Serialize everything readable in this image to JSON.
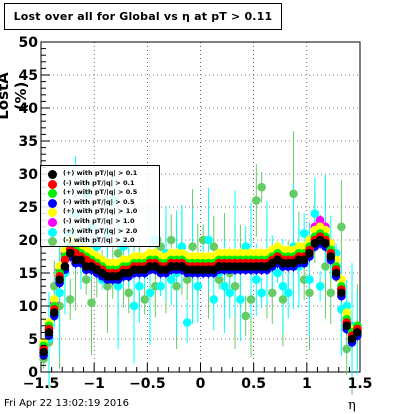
{
  "chart_data": {
    "type": "scatter",
    "title": "Lost over all for Global vs   η at pT > 0.11",
    "xlabel": "η",
    "ylabel": "LostA (%)",
    "xlim": [
      -1.5,
      1.5
    ],
    "ylim": [
      0,
      50
    ],
    "x_ticks": [
      "−1.5",
      "−1",
      "−0.5",
      "0",
      "0.5",
      "1",
      "1.5"
    ],
    "y_ticks": [
      "0",
      "5",
      "10",
      "15",
      "20",
      "25",
      "30",
      "35",
      "40",
      "45",
      "50"
    ],
    "grid": true,
    "legend_position": "left-middle",
    "timestamp": "Fri Apr 22 13:02:19 2016",
    "x": [
      -1.475,
      -1.425,
      -1.375,
      -1.325,
      -1.275,
      -1.225,
      -1.175,
      -1.125,
      -1.075,
      -1.025,
      -0.975,
      -0.925,
      -0.875,
      -0.825,
      -0.775,
      -0.725,
      -0.675,
      -0.625,
      -0.575,
      -0.525,
      -0.475,
      -0.425,
      -0.375,
      -0.325,
      -0.275,
      -0.225,
      -0.175,
      -0.125,
      -0.075,
      -0.025,
      0.025,
      0.075,
      0.125,
      0.175,
      0.225,
      0.275,
      0.325,
      0.375,
      0.425,
      0.475,
      0.525,
      0.575,
      0.625,
      0.675,
      0.725,
      0.775,
      0.825,
      0.875,
      0.925,
      0.975,
      1.025,
      1.075,
      1.125,
      1.175,
      1.225,
      1.275,
      1.325,
      1.375,
      1.425,
      1.475
    ],
    "series": [
      {
        "name": "(+) with pT/|q| > 0.1",
        "color": "#000000",
        "values": [
          3,
          6,
          9,
          14,
          16,
          18,
          17,
          17,
          16,
          16,
          15.5,
          15,
          14.5,
          14.5,
          14.5,
          15,
          15,
          15.5,
          15.5,
          15.5,
          16,
          16,
          15.5,
          15.5,
          16,
          16,
          16,
          15.5,
          15.5,
          15.5,
          15.5,
          15.5,
          15.5,
          16,
          16,
          16,
          16,
          16,
          16,
          16,
          16,
          16,
          16,
          16.5,
          17,
          16.5,
          16.5,
          16.5,
          17,
          17,
          18,
          19.5,
          20,
          19.5,
          17.5,
          15,
          12,
          7,
          5,
          6
        ]
      },
      {
        "name": "(-) with pT/|q| > 0.1",
        "color": "#ff0000",
        "values": [
          3.5,
          6.5,
          9.5,
          14.5,
          17,
          18.5,
          18,
          17.5,
          17,
          16.5,
          16,
          15.5,
          15,
          15,
          15,
          15.5,
          15.5,
          16,
          16,
          16,
          16.5,
          16.5,
          16,
          16,
          16.5,
          16.5,
          16.5,
          16,
          16,
          16,
          16,
          16,
          16,
          16.5,
          16.5,
          16.5,
          16.5,
          16.5,
          16.5,
          16.5,
          16.5,
          16.5,
          16.5,
          17,
          17.5,
          17,
          17,
          17,
          17.5,
          17.5,
          18.5,
          20,
          20.5,
          20,
          18,
          15.5,
          12.5,
          7.5,
          5.5,
          6.5
        ]
      },
      {
        "name": "(+) with pT/|q| > 0.5",
        "color": "#00ee00",
        "values": [
          4,
          7,
          10,
          15,
          17.5,
          19,
          18.5,
          18,
          17.5,
          17,
          16.5,
          16,
          15.5,
          15.5,
          15.5,
          16,
          16,
          16.5,
          16.5,
          16.5,
          17,
          17,
          16.5,
          16.5,
          17,
          17,
          17,
          16.5,
          16.5,
          16.5,
          16.5,
          16.5,
          16.5,
          17,
          17,
          17,
          17,
          17,
          17,
          17,
          17,
          17,
          17,
          17.5,
          18,
          17.5,
          17.5,
          17.5,
          18,
          18,
          19,
          20.5,
          21,
          20.5,
          18.5,
          16,
          13,
          8,
          6,
          7
        ]
      },
      {
        "name": "(-) with pT/|q| > 0.5",
        "color": "#0000ff",
        "values": [
          2.5,
          5.5,
          8.5,
          13.5,
          15.5,
          17.5,
          16.5,
          16.5,
          15.5,
          15.5,
          15,
          14.5,
          14,
          14,
          14,
          14.5,
          14.5,
          15,
          15,
          15,
          15.5,
          15.5,
          15,
          15,
          15.5,
          15.5,
          15.5,
          15,
          15,
          15,
          15,
          15,
          15,
          15.5,
          15.5,
          15.5,
          15.5,
          15.5,
          15.5,
          15.5,
          15.5,
          15.5,
          15.5,
          16,
          16.5,
          16,
          16,
          16,
          16.5,
          16.5,
          17.5,
          19,
          19.5,
          19,
          17,
          14.5,
          11.5,
          6.5,
          4.5,
          5.5
        ]
      },
      {
        "name": "(+) with pT/|q| > 1.0",
        "color": "#ffff00",
        "values": [
          4.5,
          7.5,
          11,
          16,
          18.5,
          20,
          19.5,
          19,
          18.5,
          18,
          17.5,
          17,
          16.5,
          16.5,
          16.5,
          17,
          17,
          17.5,
          17.5,
          17.5,
          18,
          18,
          17.5,
          17.5,
          18,
          18,
          18,
          17.5,
          17.5,
          17.5,
          17.5,
          17.5,
          17.5,
          18,
          18,
          18,
          18,
          18,
          18,
          18,
          18,
          18,
          18,
          18.5,
          19,
          18.5,
          18.5,
          18.5,
          19,
          19,
          20,
          21.5,
          22,
          21.5,
          19.5,
          17,
          14,
          9,
          6.5,
          7
        ]
      },
      {
        "name": "(-) with pT/|q| > 1.0",
        "color": "#ff00ff",
        "values": [
          3,
          6.5,
          10.5,
          15.5,
          18,
          20,
          19,
          18.5,
          18,
          17.5,
          17,
          16.5,
          16,
          16,
          16,
          16.5,
          16.5,
          17,
          17,
          17,
          17.5,
          17.5,
          17,
          17,
          17.5,
          17.5,
          17.5,
          17,
          17,
          17,
          17,
          17,
          17,
          17.5,
          17.5,
          17.5,
          17.5,
          17.5,
          17.5,
          17.5,
          17.5,
          17.5,
          17.5,
          18,
          18.5,
          18,
          18,
          18,
          18.5,
          18.5,
          20,
          22,
          23,
          22,
          19.5,
          16,
          12.5,
          7.5,
          5,
          6.5
        ]
      },
      {
        "name": "(+) with pT/|q| > 2.0",
        "color": "#00ffff",
        "values": [
          3,
          5,
          10.5,
          12,
          15,
          21,
          24,
          18,
          27,
          22,
          19,
          14,
          21,
          26,
          13,
          19,
          16,
          10,
          13,
          15,
          12,
          20,
          13,
          18,
          14,
          15,
          19,
          7.5,
          16,
          13,
          17,
          20,
          11,
          15,
          13,
          12,
          18,
          11,
          19,
          17,
          14,
          12,
          18,
          16,
          15,
          13,
          12,
          19,
          16,
          21,
          14,
          24,
          13,
          22,
          19,
          18,
          9.5,
          10,
          7,
          6
        ]
      },
      {
        "name": "(-) with pT/|q| > 2.0",
        "color": "#66cc66",
        "values": [
          2,
          4.5,
          13,
          10,
          17,
          11,
          18,
          20,
          14,
          10.5,
          16,
          17,
          13,
          15,
          18,
          16,
          12,
          17,
          15,
          11,
          17,
          13,
          19,
          16,
          20,
          13,
          18,
          14,
          19,
          17,
          20,
          16,
          19,
          14,
          17,
          15,
          13,
          16,
          8.5,
          11,
          26,
          28,
          16,
          12,
          18,
          11,
          16,
          27,
          18,
          14,
          12,
          22,
          21,
          16,
          12,
          16,
          22,
          3.5,
          6,
          7
        ]
      }
    ]
  }
}
